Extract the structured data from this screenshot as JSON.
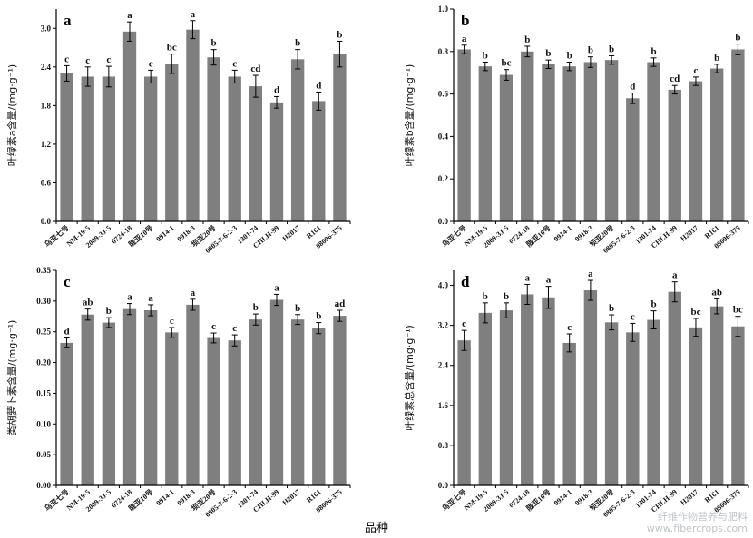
{
  "figure": {
    "x_title": "品种",
    "watermark_line1": "纤维作物营养与肥料",
    "watermark_line2": "www.fibercrops.com"
  },
  "colors": {
    "bar": "#7f7f7f",
    "axis": "#000000",
    "text": "#111111"
  },
  "chart_data": [
    {
      "type": "bar",
      "panel_label": "a",
      "ylabel": "叶绿素a含量/(mg·g⁻¹)",
      "ylim": [
        0,
        3.3
      ],
      "yticks": [
        "0.0",
        "0.6",
        "1.2",
        "1.8",
        "2.4",
        "3.0"
      ],
      "categories": [
        "乌亚七号",
        "NM-19-5",
        "2009-3J-5",
        "0724-18",
        "陇亚10号",
        "0914-1",
        "0918-3",
        "坝亚20号",
        "0805-7-6-2-3",
        "1301-74",
        "CHLH-99",
        "H2017",
        "R161",
        "08006-375"
      ],
      "values": [
        2.3,
        2.25,
        2.25,
        2.95,
        2.25,
        2.45,
        2.98,
        2.55,
        2.25,
        2.1,
        1.85,
        2.52,
        1.87,
        2.6
      ],
      "errors": [
        0.12,
        0.15,
        0.16,
        0.15,
        0.1,
        0.15,
        0.14,
        0.12,
        0.1,
        0.17,
        0.09,
        0.15,
        0.14,
        0.2
      ],
      "significance": [
        "c",
        "c",
        "c",
        "a",
        "c",
        "bc",
        "a",
        "b",
        "c",
        "cd",
        "d",
        "b",
        "d",
        "b"
      ]
    },
    {
      "type": "bar",
      "panel_label": "b",
      "ylabel": "叶绿素b含量/(mg·g⁻¹)",
      "ylim": [
        0,
        1.0
      ],
      "yticks": [
        "0.0",
        "0.2",
        "0.4",
        "0.6",
        "0.8",
        "1.0"
      ],
      "categories": [
        "乌亚七号",
        "NM-19-5",
        "2009-3J-5",
        "0724-18",
        "陇亚10号",
        "0914-1",
        "0918-3",
        "坝亚20号",
        "0805-7-6-2-3",
        "1301-74",
        "CHLH-99",
        "H2017",
        "R161",
        "08006-375"
      ],
      "values": [
        0.81,
        0.73,
        0.69,
        0.8,
        0.74,
        0.73,
        0.75,
        0.76,
        0.58,
        0.75,
        0.62,
        0.66,
        0.72,
        0.81
      ],
      "errors": [
        0.02,
        0.02,
        0.025,
        0.025,
        0.02,
        0.02,
        0.025,
        0.02,
        0.025,
        0.02,
        0.02,
        0.02,
        0.02,
        0.025
      ],
      "significance": [
        "a",
        "b",
        "bc",
        "b",
        "b",
        "b",
        "b",
        "b",
        "d",
        "b",
        "cd",
        "c",
        "b",
        "b"
      ]
    },
    {
      "type": "bar",
      "panel_label": "c",
      "ylabel": "类胡萝卜素含量/(mg·g⁻¹)",
      "ylim": [
        0,
        0.35
      ],
      "yticks": [
        "0.00",
        "0.05",
        "0.10",
        "0.15",
        "0.20",
        "0.25",
        "0.30",
        "0.35"
      ],
      "categories": [
        "乌亚七号",
        "NM-19-5",
        "2009-3J-5",
        "0724-18",
        "陇亚10号",
        "0914-1",
        "0918-3",
        "坝亚20号",
        "0805-7-6-2-3",
        "1301-74",
        "CHLH-99",
        "H2017",
        "R161",
        "08006-375"
      ],
      "values": [
        0.232,
        0.278,
        0.265,
        0.287,
        0.285,
        0.249,
        0.294,
        0.24,
        0.236,
        0.27,
        0.302,
        0.27,
        0.256,
        0.276
      ],
      "errors": [
        0.008,
        0.009,
        0.008,
        0.009,
        0.009,
        0.008,
        0.009,
        0.008,
        0.009,
        0.009,
        0.009,
        0.008,
        0.009,
        0.009
      ],
      "significance": [
        "d",
        "ab",
        "b",
        "a",
        "a",
        "c",
        "a",
        "c",
        "c",
        "b",
        "a",
        "b",
        "b",
        "ad"
      ]
    },
    {
      "type": "bar",
      "panel_label": "d",
      "ylabel": "叶绿素总含量/(mg·g⁻¹)",
      "ylim": [
        0,
        4.3
      ],
      "yticks": [
        "0.0",
        "0.8",
        "1.6",
        "2.4",
        "3.2",
        "4.0"
      ],
      "categories": [
        "乌亚七号",
        "NM-19-5",
        "2009-3J-5",
        "0724-18",
        "陇亚10号",
        "0914-1",
        "0918-3",
        "坝亚20号",
        "0805-7-6-2-3",
        "1301-74",
        "CHLH-99",
        "H2017",
        "R161",
        "08006-375"
      ],
      "values": [
        2.9,
        3.45,
        3.5,
        3.82,
        3.76,
        2.85,
        3.9,
        3.26,
        3.06,
        3.31,
        3.87,
        3.16,
        3.58,
        3.18
      ],
      "errors": [
        0.2,
        0.2,
        0.15,
        0.2,
        0.22,
        0.18,
        0.2,
        0.15,
        0.18,
        0.18,
        0.2,
        0.18,
        0.15,
        0.2
      ],
      "significance": [
        "c",
        "b",
        "b",
        "a",
        "a",
        "c",
        "a",
        "b",
        "c",
        "b",
        "a",
        "bc",
        "ab",
        "bc"
      ]
    }
  ]
}
